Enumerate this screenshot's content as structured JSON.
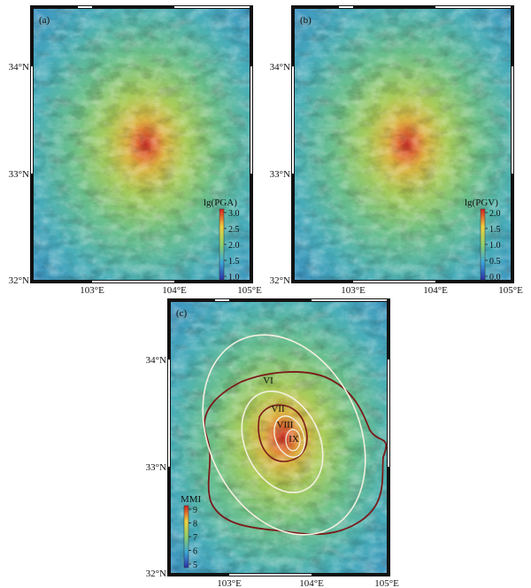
{
  "panels": [
    {
      "label": "(a)",
      "colorbar": {
        "title": "lg(PGA)",
        "ticks": [
          "3.0",
          "2.5",
          "2.0",
          "1.5",
          "1.0"
        ]
      }
    },
    {
      "label": "(b)",
      "colorbar": {
        "title": "lg(PGV)",
        "ticks": [
          "2.0",
          "1.5",
          "1.0",
          "0.5",
          "0.0"
        ]
      }
    },
    {
      "label": "(c)",
      "colorbar": {
        "title": "MMI",
        "ticks": [
          "9",
          "8",
          "7",
          "6",
          "5"
        ]
      },
      "contours": [
        "VI",
        "VII",
        "VIII",
        "IX"
      ]
    }
  ],
  "lat_labels": [
    "34°N",
    "33°N",
    "32°N"
  ],
  "lon_labels": [
    "103°E",
    "104°E",
    "105°E"
  ]
}
